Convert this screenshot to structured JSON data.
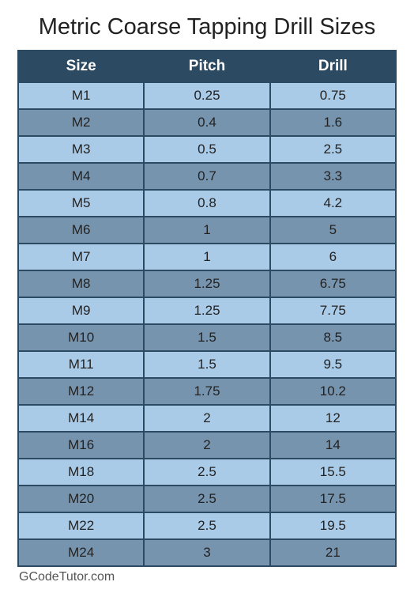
{
  "title": "Metric Coarse Tapping Drill Sizes",
  "footer": "GCodeTutor.com",
  "colors": {
    "header_bg": "#2d4a63",
    "header_text": "#ffffff",
    "row_light": "#a9cbe8",
    "row_dark": "#7794af",
    "border": "#2d4a63",
    "title_color": "#222222",
    "body_text": "#222222",
    "footer_color": "#555555",
    "page_bg": "#ffffff"
  },
  "typography": {
    "title_fontsize": 29,
    "header_fontsize": 19,
    "cell_fontsize": 17,
    "footer_fontsize": 16,
    "font_family": "Arial"
  },
  "table": {
    "type": "table",
    "columns": [
      "Size",
      "Pitch",
      "Drill"
    ],
    "rows": [
      [
        "M1",
        "0.25",
        "0.75"
      ],
      [
        "M2",
        "0.4",
        "1.6"
      ],
      [
        "M3",
        "0.5",
        "2.5"
      ],
      [
        "M4",
        "0.7",
        "3.3"
      ],
      [
        "M5",
        "0.8",
        "4.2"
      ],
      [
        "M6",
        "1",
        "5"
      ],
      [
        "M7",
        "1",
        "6"
      ],
      [
        "M8",
        "1.25",
        "6.75"
      ],
      [
        "M9",
        "1.25",
        "7.75"
      ],
      [
        "M10",
        "1.5",
        "8.5"
      ],
      [
        "M11",
        "1.5",
        "9.5"
      ],
      [
        "M12",
        "1.75",
        "10.2"
      ],
      [
        "M14",
        "2",
        "12"
      ],
      [
        "M16",
        "2",
        "14"
      ],
      [
        "M18",
        "2.5",
        "15.5"
      ],
      [
        "M20",
        "2.5",
        "17.5"
      ],
      [
        "M22",
        "2.5",
        "19.5"
      ],
      [
        "M24",
        "3",
        "21"
      ]
    ]
  }
}
